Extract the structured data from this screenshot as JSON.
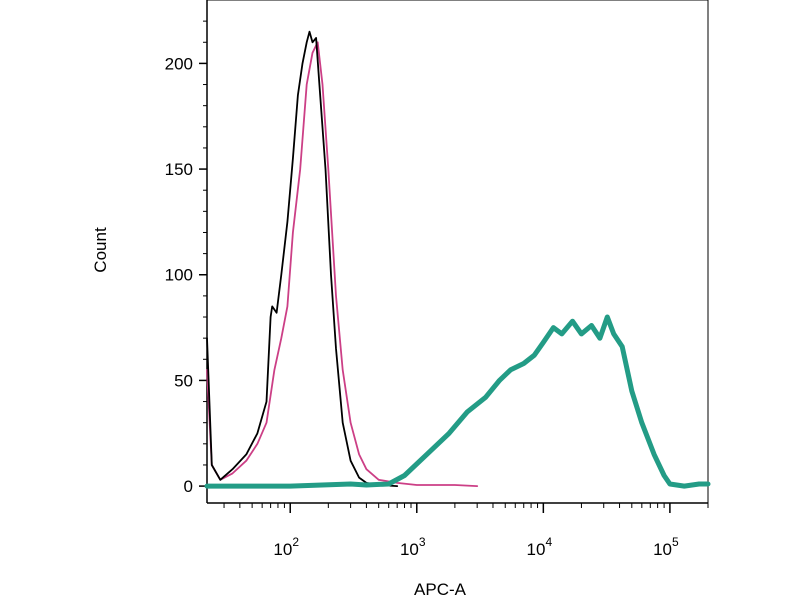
{
  "chart_data": {
    "type": "line",
    "title": "",
    "xlabel": "APC-A",
    "ylabel": "Count",
    "x_scale": "log",
    "xlim": [
      22,
      200000
    ],
    "ylim": [
      -8,
      230
    ],
    "grid": false,
    "legend": "none",
    "x_ticks": [
      {
        "value": 100,
        "base": "10",
        "exp": "2"
      },
      {
        "value": 1000,
        "base": "10",
        "exp": "3"
      },
      {
        "value": 10000,
        "base": "10",
        "exp": "4"
      },
      {
        "value": 100000,
        "base": "10",
        "exp": "5"
      }
    ],
    "y_ticks": [
      {
        "value": 0,
        "label": "0"
      },
      {
        "value": 50,
        "label": "50"
      },
      {
        "value": 100,
        "label": "100"
      },
      {
        "value": 150,
        "label": "150"
      },
      {
        "value": 200,
        "label": "200"
      }
    ],
    "series": [
      {
        "color": "#cc3f86",
        "width": 1.8,
        "points": [
          [
            22,
            55
          ],
          [
            24,
            10
          ],
          [
            28,
            3
          ],
          [
            35,
            6
          ],
          [
            45,
            12
          ],
          [
            55,
            20
          ],
          [
            65,
            30
          ],
          [
            75,
            55
          ],
          [
            85,
            70
          ],
          [
            95,
            85
          ],
          [
            105,
            120
          ],
          [
            120,
            150
          ],
          [
            135,
            190
          ],
          [
            150,
            205
          ],
          [
            165,
            210
          ],
          [
            180,
            190
          ],
          [
            200,
            150
          ],
          [
            230,
            90
          ],
          [
            260,
            55
          ],
          [
            300,
            30
          ],
          [
            350,
            15
          ],
          [
            400,
            8
          ],
          [
            500,
            3
          ],
          [
            700,
            1.5
          ],
          [
            1000,
            0.5
          ],
          [
            2000,
            0.5
          ],
          [
            3000,
            0
          ]
        ]
      },
      {
        "color": "#000000",
        "width": 1.8,
        "points": [
          [
            22,
            70
          ],
          [
            24,
            10
          ],
          [
            28,
            3
          ],
          [
            35,
            8
          ],
          [
            45,
            15
          ],
          [
            55,
            25
          ],
          [
            65,
            40
          ],
          [
            70,
            80
          ],
          [
            72,
            85
          ],
          [
            78,
            82
          ],
          [
            85,
            100
          ],
          [
            95,
            125
          ],
          [
            105,
            155
          ],
          [
            115,
            185
          ],
          [
            125,
            200
          ],
          [
            135,
            210
          ],
          [
            142,
            215
          ],
          [
            150,
            210
          ],
          [
            160,
            212
          ],
          [
            170,
            190
          ],
          [
            190,
            150
          ],
          [
            210,
            100
          ],
          [
            230,
            65
          ],
          [
            260,
            30
          ],
          [
            300,
            12
          ],
          [
            350,
            4
          ],
          [
            400,
            1.5
          ],
          [
            500,
            0.5
          ],
          [
            700,
            0
          ]
        ]
      },
      {
        "color": "#239c86",
        "width": 5,
        "points": [
          [
            22,
            0
          ],
          [
            100,
            0
          ],
          [
            300,
            1
          ],
          [
            400,
            0.5
          ],
          [
            600,
            1
          ],
          [
            800,
            5
          ],
          [
            1200,
            15
          ],
          [
            1800,
            25
          ],
          [
            2500,
            35
          ],
          [
            3500,
            42
          ],
          [
            4500,
            50
          ],
          [
            5500,
            55
          ],
          [
            7000,
            58
          ],
          [
            8500,
            62
          ],
          [
            10000,
            68
          ],
          [
            12000,
            75
          ],
          [
            14000,
            72
          ],
          [
            17000,
            78
          ],
          [
            20000,
            72
          ],
          [
            24000,
            76
          ],
          [
            28000,
            70
          ],
          [
            32000,
            80
          ],
          [
            36000,
            72
          ],
          [
            42000,
            66
          ],
          [
            50000,
            45
          ],
          [
            60000,
            30
          ],
          [
            75000,
            15
          ],
          [
            90000,
            5
          ],
          [
            100000,
            1
          ],
          [
            130000,
            0
          ],
          [
            170000,
            1
          ],
          [
            200000,
            1
          ]
        ]
      }
    ]
  }
}
